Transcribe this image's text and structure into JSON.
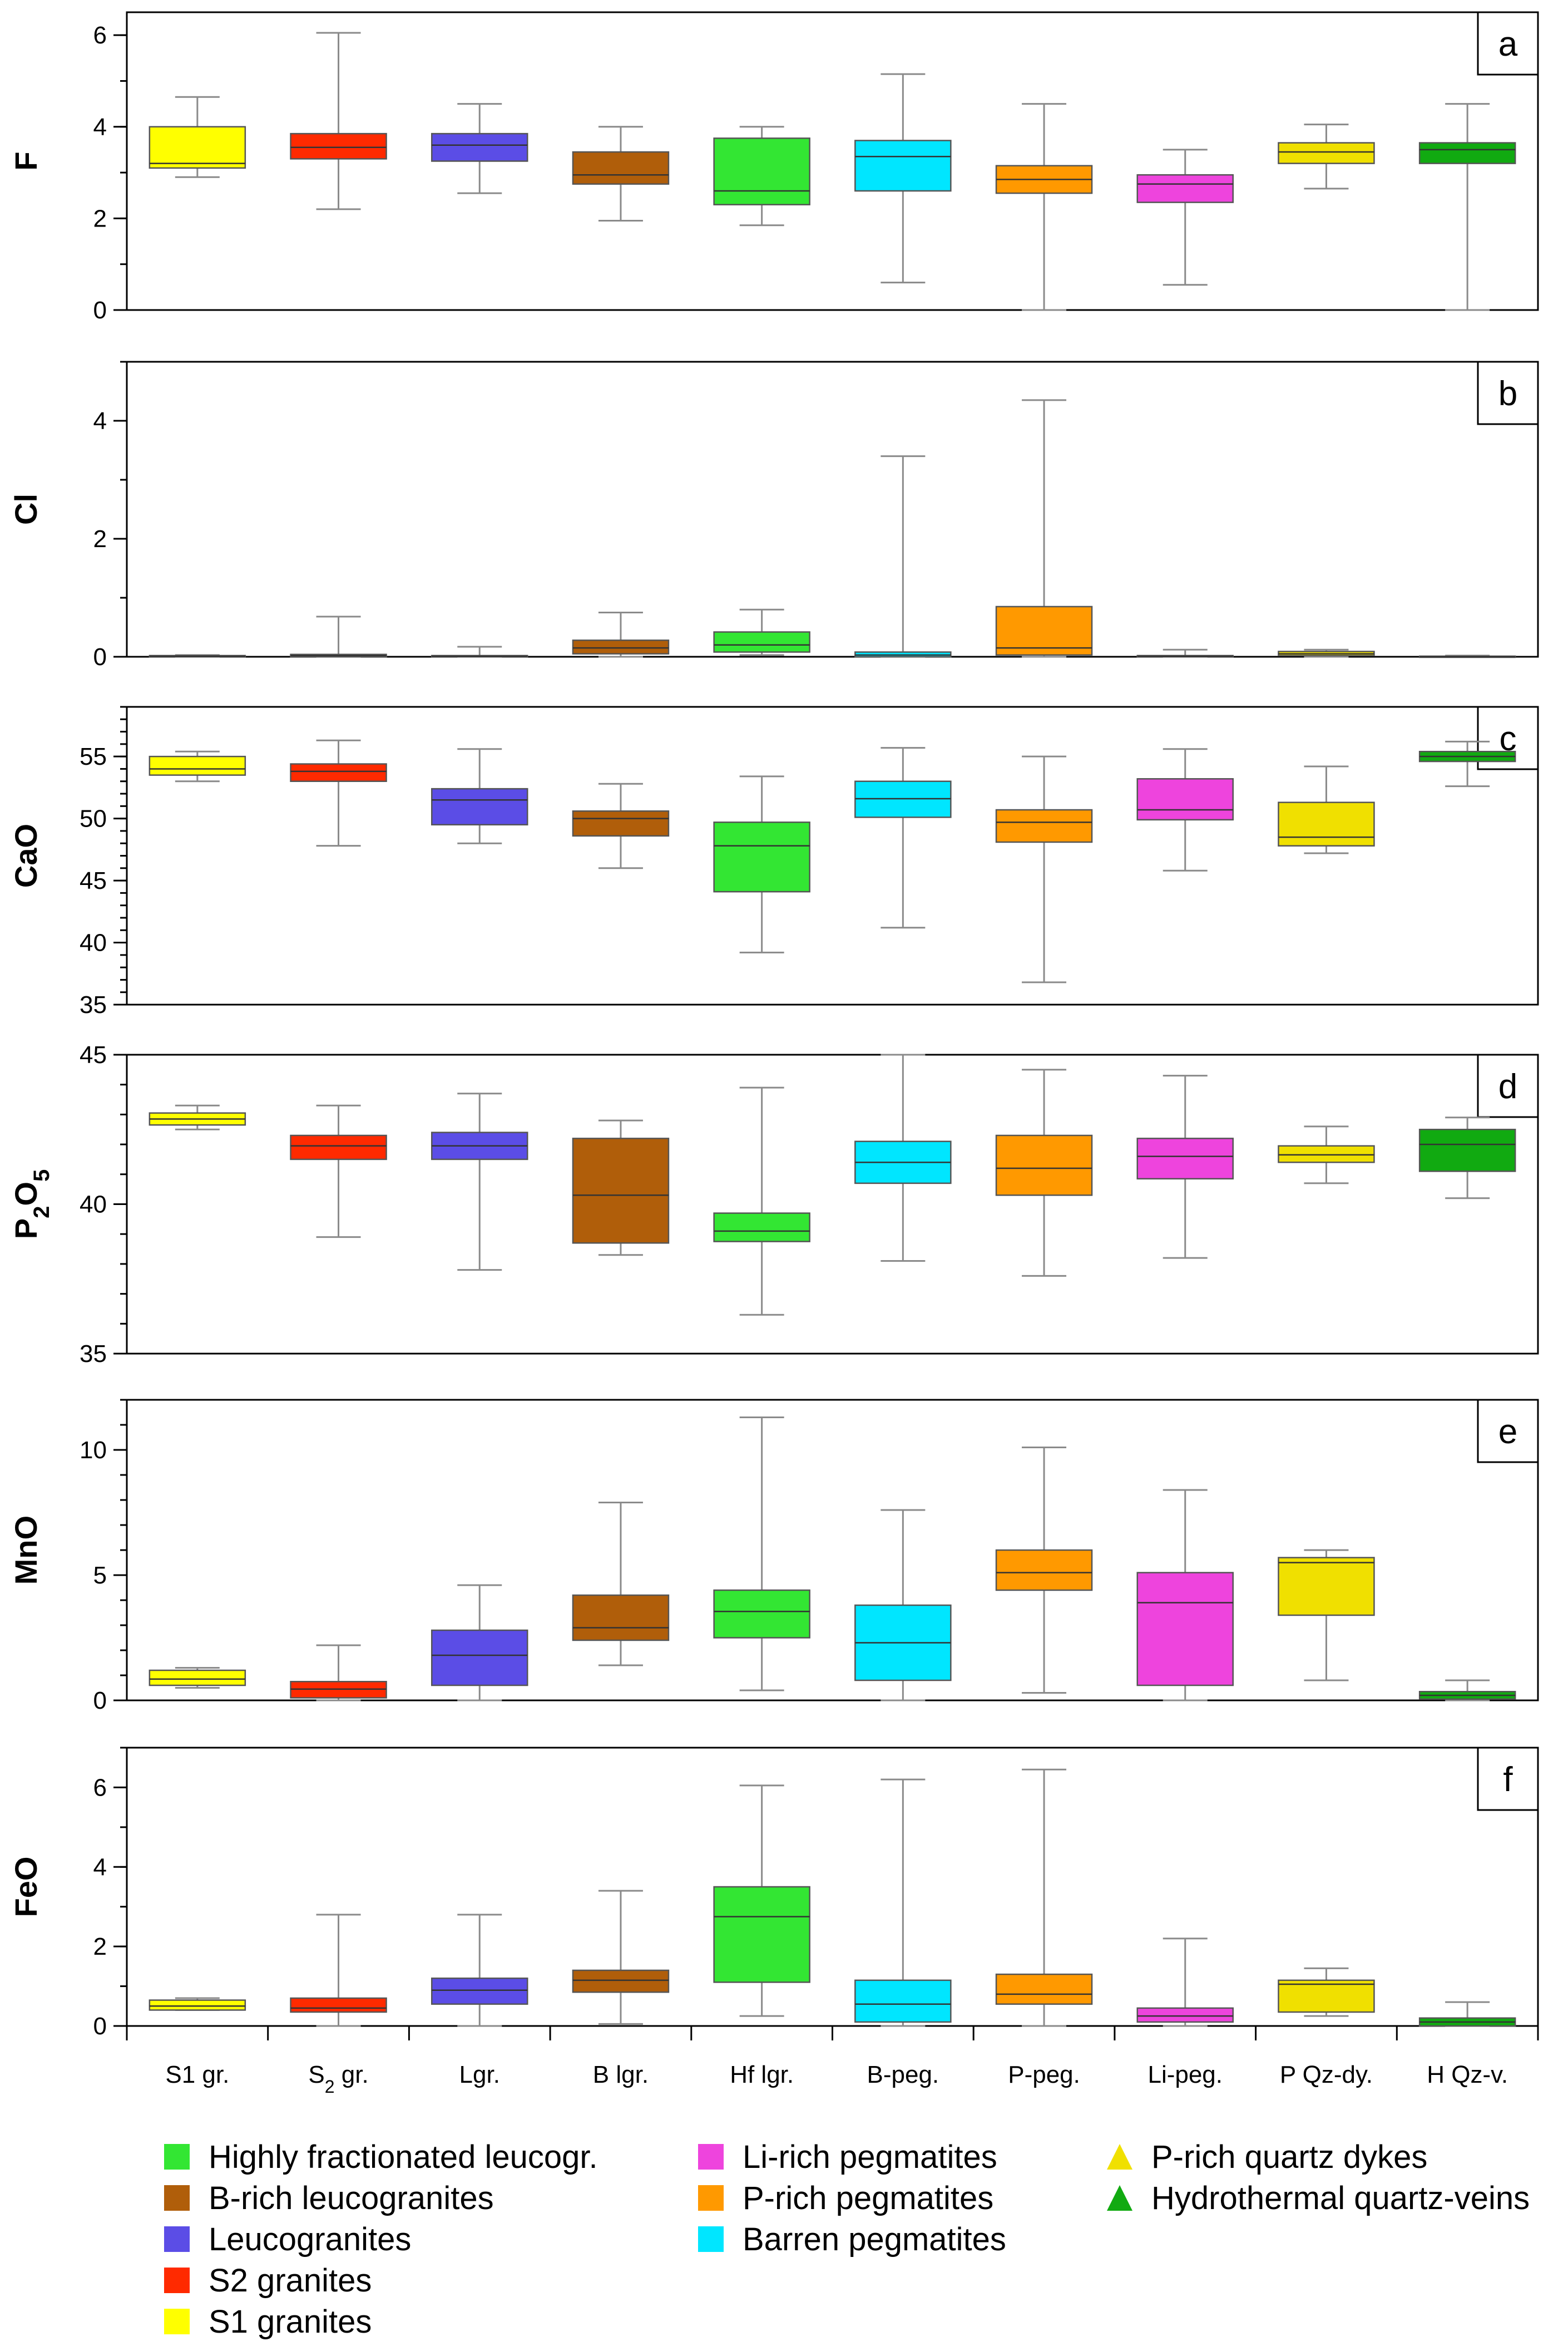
{
  "chart_data": {
    "type": "box",
    "categories": [
      "S1 gr.",
      "S2 gr.",
      "Lgr.",
      "B lgr.",
      "Hf lgr.",
      "B-peg.",
      "P-peg.",
      "Li-peg.",
      "P Qz-dy.",
      "H Qz-v."
    ],
    "category_colors": [
      "#ffff00",
      "#ff2a00",
      "#5b4de6",
      "#b05e0a",
      "#33e633",
      "#00e6ff",
      "#ff9900",
      "#ee44dd",
      "#f0e000",
      "#11aa11"
    ],
    "panels": [
      {
        "letter": "a",
        "ylabel": "F",
        "ylim": [
          0,
          6.5
        ],
        "yticks": [
          0,
          2,
          4,
          6
        ],
        "tick_labels": [
          "0",
          "2",
          "4",
          "6"
        ],
        "minor_step": 1,
        "boxes": [
          {
            "min": 2.9,
            "q1": 3.1,
            "median": 3.2,
            "q3": 4.0,
            "max": 4.65
          },
          {
            "min": 2.2,
            "q1": 3.3,
            "median": 3.55,
            "q3": 3.85,
            "max": 6.05
          },
          {
            "min": 2.55,
            "q1": 3.25,
            "median": 3.6,
            "q3": 3.85,
            "max": 4.5
          },
          {
            "min": 1.95,
            "q1": 2.75,
            "median": 2.95,
            "q3": 3.45,
            "max": 4.0
          },
          {
            "min": 1.85,
            "q1": 2.3,
            "median": 2.6,
            "q3": 3.75,
            "max": 4.0
          },
          {
            "min": 0.6,
            "q1": 2.6,
            "median": 3.35,
            "q3": 3.7,
            "max": 5.15
          },
          {
            "min": 0.0,
            "q1": 2.55,
            "median": 2.85,
            "q3": 3.15,
            "max": 4.5
          },
          {
            "min": 0.55,
            "q1": 2.35,
            "median": 2.75,
            "q3": 2.95,
            "max": 3.5
          },
          {
            "min": 2.65,
            "q1": 3.2,
            "median": 3.45,
            "q3": 3.65,
            "max": 4.05
          },
          {
            "min": 0.0,
            "q1": 3.2,
            "median": 3.5,
            "q3": 3.65,
            "max": 4.5
          }
        ]
      },
      {
        "letter": "b",
        "ylabel": "Cl",
        "ylim": [
          0,
          5
        ],
        "yticks": [
          0,
          2,
          4
        ],
        "tick_labels": [
          "0",
          "2",
          "4"
        ],
        "minor_step": 1,
        "boxes": [
          {
            "min": 0.0,
            "q1": 0.0,
            "median": 0.01,
            "q3": 0.02,
            "max": 0.03
          },
          {
            "min": 0.0,
            "q1": 0.0,
            "median": 0.02,
            "q3": 0.04,
            "max": 0.68
          },
          {
            "min": 0.0,
            "q1": 0.0,
            "median": 0.01,
            "q3": 0.02,
            "max": 0.17
          },
          {
            "min": 0.0,
            "q1": 0.05,
            "median": 0.15,
            "q3": 0.28,
            "max": 0.75
          },
          {
            "min": 0.03,
            "q1": 0.08,
            "median": 0.2,
            "q3": 0.42,
            "max": 0.8
          },
          {
            "min": 0.0,
            "q1": 0.0,
            "median": 0.03,
            "q3": 0.08,
            "max": 3.4
          },
          {
            "min": 0.0,
            "q1": 0.03,
            "median": 0.15,
            "q3": 0.85,
            "max": 4.35
          },
          {
            "min": 0.0,
            "q1": 0.0,
            "median": 0.01,
            "q3": 0.02,
            "max": 0.12
          },
          {
            "min": 0.0,
            "q1": 0.02,
            "median": 0.05,
            "q3": 0.09,
            "max": 0.12
          },
          {
            "min": 0.0,
            "q1": 0.0,
            "median": 0.0,
            "q3": 0.01,
            "max": 0.02
          }
        ]
      },
      {
        "letter": "c",
        "ylabel": "CaO",
        "ylim": [
          35,
          59
        ],
        "yticks": [
          35,
          40,
          45,
          50,
          55
        ],
        "tick_labels": [
          "35",
          "40",
          "45",
          "50",
          "55"
        ],
        "minor_step": 1,
        "boxes": [
          {
            "min": 53.0,
            "q1": 53.5,
            "median": 54.0,
            "q3": 55.0,
            "max": 55.4
          },
          {
            "min": 47.8,
            "q1": 53.0,
            "median": 53.8,
            "q3": 54.4,
            "max": 56.3
          },
          {
            "min": 48.0,
            "q1": 49.5,
            "median": 51.5,
            "q3": 52.4,
            "max": 55.6
          },
          {
            "min": 46.0,
            "q1": 48.6,
            "median": 50.0,
            "q3": 50.6,
            "max": 52.8
          },
          {
            "min": 39.2,
            "q1": 44.1,
            "median": 47.8,
            "q3": 49.7,
            "max": 53.4
          },
          {
            "min": 41.2,
            "q1": 50.1,
            "median": 51.6,
            "q3": 53.0,
            "max": 55.7
          },
          {
            "min": 36.8,
            "q1": 48.1,
            "median": 49.7,
            "q3": 50.7,
            "max": 55.0
          },
          {
            "min": 45.8,
            "q1": 49.9,
            "median": 50.7,
            "q3": 53.2,
            "max": 55.6
          },
          {
            "min": 47.2,
            "q1": 47.8,
            "median": 48.5,
            "q3": 51.3,
            "max": 54.2
          },
          {
            "min": 52.6,
            "q1": 54.6,
            "median": 55.0,
            "q3": 55.4,
            "max": 56.2
          }
        ]
      },
      {
        "letter": "d",
        "ylabel": "P2O5",
        "ylim": [
          35,
          45
        ],
        "yticks": [
          35,
          40,
          45
        ],
        "tick_labels": [
          "35",
          "40",
          "45"
        ],
        "minor_step": 1,
        "boxes": [
          {
            "min": 42.5,
            "q1": 42.65,
            "median": 42.85,
            "q3": 43.05,
            "max": 43.3
          },
          {
            "min": 38.9,
            "q1": 41.5,
            "median": 41.95,
            "q3": 42.3,
            "max": 43.3
          },
          {
            "min": 37.8,
            "q1": 41.5,
            "median": 41.95,
            "q3": 42.4,
            "max": 43.7
          },
          {
            "min": 38.3,
            "q1": 38.7,
            "median": 40.3,
            "q3": 42.2,
            "max": 42.8
          },
          {
            "min": 36.3,
            "q1": 38.75,
            "median": 39.1,
            "q3": 39.7,
            "max": 43.9
          },
          {
            "min": 38.1,
            "q1": 40.7,
            "median": 41.4,
            "q3": 42.1,
            "max": 45.0
          },
          {
            "min": 37.6,
            "q1": 40.3,
            "median": 41.2,
            "q3": 42.3,
            "max": 44.5
          },
          {
            "min": 38.2,
            "q1": 40.85,
            "median": 41.6,
            "q3": 42.2,
            "max": 44.3
          },
          {
            "min": 40.7,
            "q1": 41.4,
            "median": 41.65,
            "q3": 41.95,
            "max": 42.6
          },
          {
            "min": 40.2,
            "q1": 41.1,
            "median": 42.0,
            "q3": 42.5,
            "max": 42.9
          }
        ]
      },
      {
        "letter": "e",
        "ylabel": "MnO",
        "ylim": [
          0,
          12
        ],
        "yticks": [
          0,
          5,
          10
        ],
        "tick_labels": [
          "0",
          "5",
          "10"
        ],
        "minor_step": 1,
        "boxes": [
          {
            "min": 0.5,
            "q1": 0.6,
            "median": 0.85,
            "q3": 1.2,
            "max": 1.3
          },
          {
            "min": 0.0,
            "q1": 0.1,
            "median": 0.45,
            "q3": 0.75,
            "max": 2.2
          },
          {
            "min": 0.0,
            "q1": 0.6,
            "median": 1.8,
            "q3": 2.8,
            "max": 4.6
          },
          {
            "min": 1.4,
            "q1": 2.4,
            "median": 2.9,
            "q3": 4.2,
            "max": 7.9
          },
          {
            "min": 0.4,
            "q1": 2.5,
            "median": 3.55,
            "q3": 4.4,
            "max": 11.3
          },
          {
            "min": 0.0,
            "q1": 0.8,
            "median": 2.3,
            "q3": 3.8,
            "max": 7.6
          },
          {
            "min": 0.3,
            "q1": 4.4,
            "median": 5.1,
            "q3": 6.0,
            "max": 10.1
          },
          {
            "min": 0.0,
            "q1": 0.6,
            "median": 3.9,
            "q3": 5.1,
            "max": 8.4
          },
          {
            "min": 0.8,
            "q1": 3.4,
            "median": 5.5,
            "q3": 5.7,
            "max": 6.0
          },
          {
            "min": 0.0,
            "q1": 0.05,
            "median": 0.2,
            "q3": 0.35,
            "max": 0.8
          }
        ]
      },
      {
        "letter": "f",
        "ylabel": "FeO",
        "ylim": [
          0,
          7
        ],
        "yticks": [
          0,
          2,
          4,
          6
        ],
        "tick_labels": [
          "0",
          "2",
          "4",
          "6"
        ],
        "minor_step": 1,
        "boxes": [
          {
            "min": 0.4,
            "q1": 0.4,
            "median": 0.5,
            "q3": 0.65,
            "max": 0.7
          },
          {
            "min": 0.0,
            "q1": 0.35,
            "median": 0.45,
            "q3": 0.7,
            "max": 2.8
          },
          {
            "min": 0.0,
            "q1": 0.55,
            "median": 0.9,
            "q3": 1.2,
            "max": 2.8
          },
          {
            "min": 0.05,
            "q1": 0.85,
            "median": 1.15,
            "q3": 1.4,
            "max": 3.4
          },
          {
            "min": 0.25,
            "q1": 1.1,
            "median": 2.75,
            "q3": 3.5,
            "max": 6.05
          },
          {
            "min": 0.0,
            "q1": 0.1,
            "median": 0.55,
            "q3": 1.15,
            "max": 6.2
          },
          {
            "min": 0.0,
            "q1": 0.55,
            "median": 0.8,
            "q3": 1.3,
            "max": 6.45
          },
          {
            "min": 0.0,
            "q1": 0.1,
            "median": 0.25,
            "q3": 0.45,
            "max": 2.2
          },
          {
            "min": 0.25,
            "q1": 0.35,
            "median": 1.05,
            "q3": 1.15,
            "max": 1.45
          },
          {
            "min": 0.0,
            "q1": 0.0,
            "median": 0.1,
            "q3": 0.2,
            "max": 0.6
          }
        ]
      }
    ],
    "legend": {
      "columns": [
        [
          {
            "label": "Highly fractionated leucogr.",
            "color": "#33e633",
            "marker": "square"
          },
          {
            "label": "B-rich leucogranites",
            "color": "#b05e0a",
            "marker": "square"
          },
          {
            "label": "Leucogranites",
            "color": "#5b4de6",
            "marker": "square"
          },
          {
            "label": "S2 granites",
            "color": "#ff2a00",
            "marker": "square"
          },
          {
            "label": "S1 granites",
            "color": "#ffff00",
            "marker": "square"
          }
        ],
        [
          {
            "label": "Li-rich pegmatites",
            "color": "#ee44dd",
            "marker": "square"
          },
          {
            "label": "P-rich pegmatites",
            "color": "#ff9900",
            "marker": "square"
          },
          {
            "label": "Barren pegmatites",
            "color": "#00e6ff",
            "marker": "square"
          }
        ],
        [
          {
            "label": "P-rich quartz dykes",
            "color": "#f0e000",
            "marker": "triangle"
          },
          {
            "label": "Hydrothermal quartz-veins",
            "color": "#11aa11",
            "marker": "triangle"
          }
        ]
      ]
    }
  }
}
